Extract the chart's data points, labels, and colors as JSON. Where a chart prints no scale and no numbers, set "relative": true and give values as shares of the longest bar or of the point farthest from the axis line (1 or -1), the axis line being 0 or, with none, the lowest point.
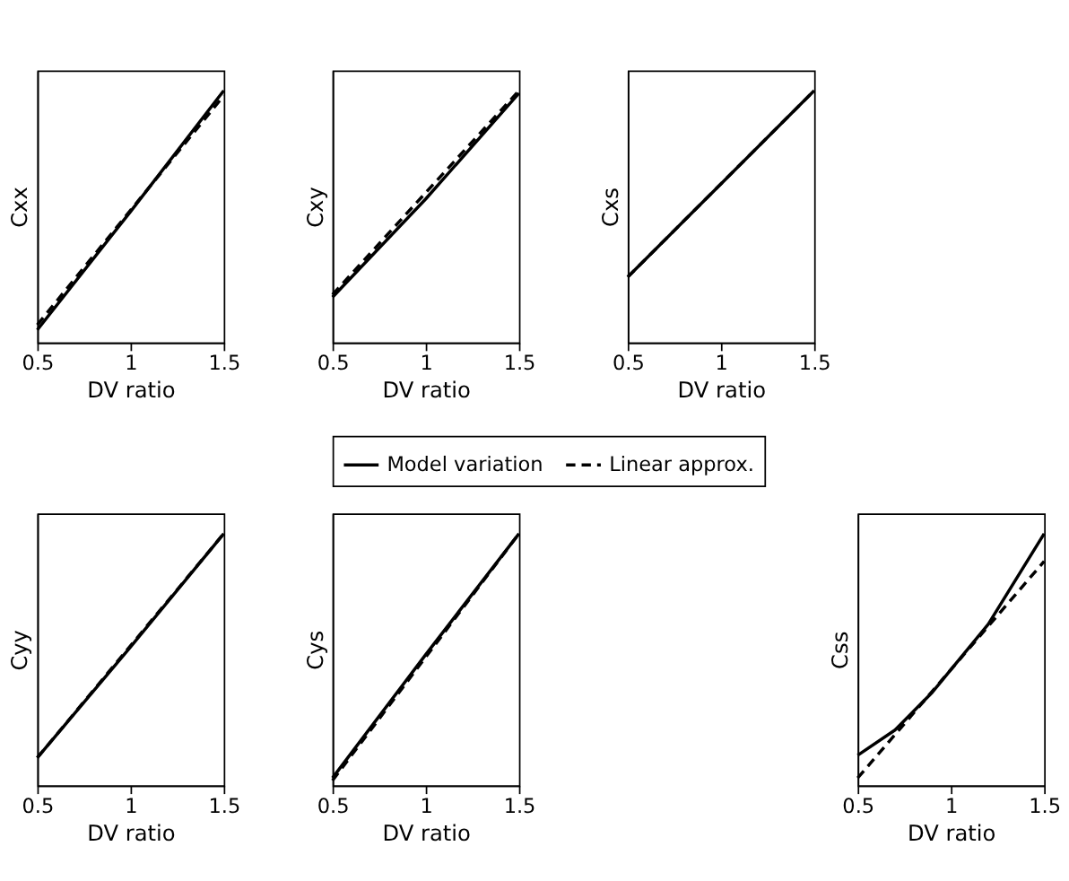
{
  "chart_data": [
    {
      "type": "line",
      "relative": true,
      "ylabel": "Cxx",
      "xlabel": "DV ratio",
      "xlim": [
        0.5,
        1.5
      ],
      "xticks": [
        0.5,
        1,
        1.5
      ],
      "grid": false,
      "legend": false,
      "series": [
        {
          "color": "#000000",
          "line_style": "solid",
          "x": [
            0.5,
            1.0,
            1.5
          ],
          "values": [
            0.05,
            0.52,
            1
          ]
        },
        {
          "color": "#000000",
          "line_style": "dashed",
          "x": [
            0.5,
            1.5
          ],
          "values": [
            0.07,
            0.98
          ]
        }
      ]
    },
    {
      "type": "line",
      "relative": true,
      "ylabel": "Cxy",
      "xlabel": "DV ratio",
      "xlim": [
        0.5,
        1.5
      ],
      "xticks": [
        0.5,
        1,
        1.5
      ],
      "grid": false,
      "legend": false,
      "series": [
        {
          "color": "#000000",
          "line_style": "solid",
          "x": [
            0.5,
            1.0,
            1.5
          ],
          "values": [
            0.18,
            0.57,
            0.99
          ]
        },
        {
          "color": "#000000",
          "line_style": "dashed",
          "x": [
            0.5,
            1.5
          ],
          "values": [
            0.19,
            1
          ]
        }
      ]
    },
    {
      "type": "line",
      "relative": true,
      "ylabel": "Cxs",
      "xlabel": "DV ratio",
      "xlim": [
        0.5,
        1.5
      ],
      "xticks": [
        0.5,
        1,
        1.5
      ],
      "grid": false,
      "legend": false,
      "series": [
        {
          "color": "#000000",
          "line_style": "solid",
          "x": [
            0.5,
            1.0,
            1.5
          ],
          "values": [
            0.26,
            0.63,
            1
          ]
        },
        {
          "color": "#000000",
          "line_style": "dashed",
          "x": [
            0.5,
            1.5
          ],
          "values": [
            0.26,
            1
          ]
        }
      ]
    },
    {
      "type": "line",
      "relative": true,
      "ylabel": "Cyy",
      "xlabel": "DV ratio",
      "xlim": [
        0.5,
        1.5
      ],
      "xticks": [
        0.5,
        1,
        1.5
      ],
      "grid": false,
      "legend": false,
      "series": [
        {
          "color": "#000000",
          "line_style": "solid",
          "x": [
            0.5,
            1.0,
            1.5
          ],
          "values": [
            0.11,
            0.55,
            1
          ]
        },
        {
          "color": "#000000",
          "line_style": "dashed",
          "x": [
            0.5,
            1.5
          ],
          "values": [
            0.11,
            1
          ]
        }
      ]
    },
    {
      "type": "line",
      "relative": true,
      "ylabel": "Cys",
      "xlabel": "DV ratio",
      "xlim": [
        0.5,
        1.5
      ],
      "xticks": [
        0.5,
        1,
        1.5
      ],
      "grid": false,
      "legend": "top",
      "series": [
        {
          "name": "Model variation",
          "color": "#000000",
          "line_style": "solid",
          "x": [
            0.5,
            1.0,
            1.5
          ],
          "values": [
            0.03,
            0.52,
            1
          ]
        },
        {
          "name": "Linear approx.",
          "color": "#000000",
          "line_style": "dashed",
          "x": [
            0.5,
            1.5
          ],
          "values": [
            0.02,
            1
          ]
        }
      ]
    },
    {
      "type": "line",
      "relative": true,
      "ylabel": "Css",
      "xlabel": "DV ratio",
      "xlim": [
        0.5,
        1.5
      ],
      "xticks": [
        0.5,
        1,
        1.5
      ],
      "grid": false,
      "legend": false,
      "series": [
        {
          "color": "#000000",
          "line_style": "solid",
          "x": [
            0.5,
            0.7,
            0.9,
            1.0,
            1.2,
            1.5
          ],
          "values": [
            0.12,
            0.22,
            0.37,
            0.46,
            0.64,
            1
          ]
        },
        {
          "color": "#000000",
          "line_style": "dashed",
          "x": [
            0.5,
            1.5
          ],
          "values": [
            0.03,
            0.89
          ]
        }
      ]
    }
  ]
}
